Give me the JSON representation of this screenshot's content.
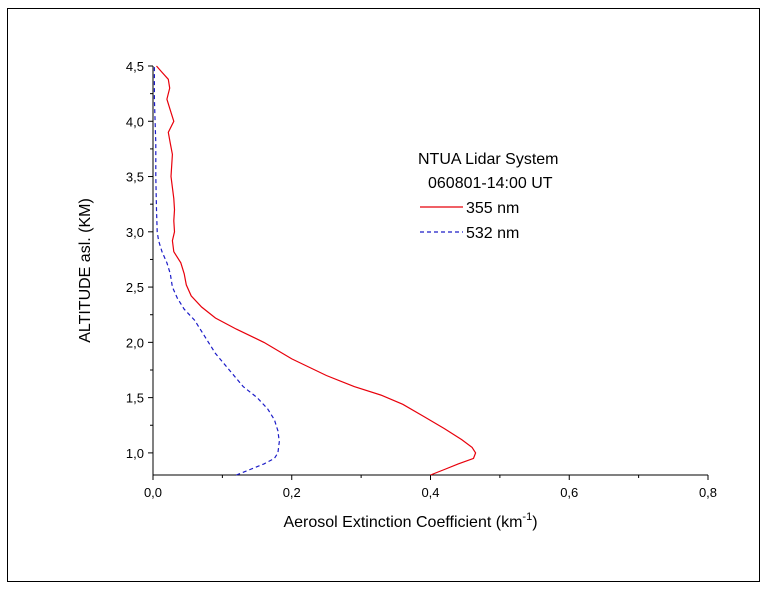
{
  "chart_data": {
    "type": "line",
    "xlabel": "Aerosol Extinction Coefficient (km",
    "xlabel_sup": "-1",
    "xlabel_end": ")",
    "ylabel": "ALTITUDE asl. (KM)",
    "xlim": [
      0.0,
      0.8
    ],
    "ylim": [
      0.8,
      4.5
    ],
    "x_ticks": [
      0.0,
      0.2,
      0.4,
      0.6,
      0.8
    ],
    "x_tick_labels": [
      "0,0",
      "0,2",
      "0,4",
      "0,6",
      "0,8"
    ],
    "y_ticks": [
      1.0,
      1.5,
      2.0,
      2.5,
      3.0,
      3.5,
      4.0,
      4.5
    ],
    "y_tick_labels": [
      "1,0",
      "1,5",
      "2,0",
      "2,5",
      "3,0",
      "3,5",
      "4,0",
      "4,5"
    ],
    "grid": false,
    "legend": {
      "placement": "upper-right",
      "title_line1": "NTUA Lidar System",
      "title_line2": "060801-14:00 UT"
    },
    "series": [
      {
        "name": "355 nm",
        "color": "#e8000b",
        "style": "solid",
        "points": [
          [
            0.4,
            0.8
          ],
          [
            0.42,
            0.85
          ],
          [
            0.44,
            0.9
          ],
          [
            0.462,
            0.95
          ],
          [
            0.465,
            1.0
          ],
          [
            0.46,
            1.05
          ],
          [
            0.445,
            1.12
          ],
          [
            0.42,
            1.22
          ],
          [
            0.39,
            1.33
          ],
          [
            0.36,
            1.44
          ],
          [
            0.33,
            1.52
          ],
          [
            0.29,
            1.6
          ],
          [
            0.25,
            1.7
          ],
          [
            0.2,
            1.85
          ],
          [
            0.16,
            2.0
          ],
          [
            0.12,
            2.12
          ],
          [
            0.09,
            2.22
          ],
          [
            0.07,
            2.32
          ],
          [
            0.055,
            2.42
          ],
          [
            0.048,
            2.52
          ],
          [
            0.045,
            2.62
          ],
          [
            0.04,
            2.72
          ],
          [
            0.03,
            2.82
          ],
          [
            0.028,
            2.92
          ],
          [
            0.031,
            3.0
          ],
          [
            0.03,
            3.1
          ],
          [
            0.031,
            3.2
          ],
          [
            0.03,
            3.3
          ],
          [
            0.028,
            3.4
          ],
          [
            0.026,
            3.5
          ],
          [
            0.027,
            3.6
          ],
          [
            0.028,
            3.7
          ],
          [
            0.025,
            3.8
          ],
          [
            0.022,
            3.9
          ],
          [
            0.03,
            4.0
          ],
          [
            0.025,
            4.1
          ],
          [
            0.02,
            4.2
          ],
          [
            0.024,
            4.3
          ],
          [
            0.022,
            4.38
          ],
          [
            0.012,
            4.45
          ],
          [
            0.005,
            4.5
          ]
        ]
      },
      {
        "name": "532 nm",
        "color": "#1c1cc8",
        "style": "dashed",
        "points": [
          [
            0.12,
            0.8
          ],
          [
            0.14,
            0.85
          ],
          [
            0.16,
            0.9
          ],
          [
            0.175,
            0.95
          ],
          [
            0.18,
            1.0
          ],
          [
            0.182,
            1.1
          ],
          [
            0.18,
            1.2
          ],
          [
            0.175,
            1.3
          ],
          [
            0.165,
            1.4
          ],
          [
            0.15,
            1.5
          ],
          [
            0.13,
            1.6
          ],
          [
            0.11,
            1.75
          ],
          [
            0.09,
            1.9
          ],
          [
            0.075,
            2.05
          ],
          [
            0.06,
            2.2
          ],
          [
            0.045,
            2.3
          ],
          [
            0.035,
            2.4
          ],
          [
            0.028,
            2.5
          ],
          [
            0.025,
            2.62
          ],
          [
            0.02,
            2.72
          ],
          [
            0.013,
            2.82
          ],
          [
            0.008,
            2.92
          ],
          [
            0.006,
            3.0
          ],
          [
            0.005,
            3.2
          ],
          [
            0.004,
            3.5
          ],
          [
            0.004,
            3.8
          ],
          [
            0.003,
            4.0
          ],
          [
            0.002,
            4.2
          ],
          [
            0.002,
            4.4
          ],
          [
            0.002,
            4.5
          ]
        ]
      }
    ]
  }
}
